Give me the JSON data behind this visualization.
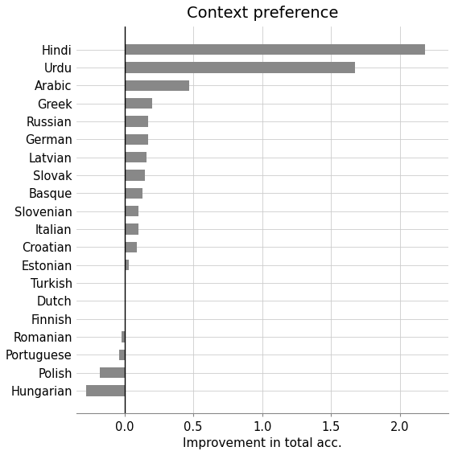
{
  "title": "Context preference",
  "xlabel": "Improvement in total acc.",
  "languages": [
    "Hindi",
    "Urdu",
    "Arabic",
    "Greek",
    "Russian",
    "German",
    "Latvian",
    "Slovak",
    "Basque",
    "Slovenian",
    "Italian",
    "Croatian",
    "Estonian",
    "Turkish",
    "Dutch",
    "Finnish",
    "Romanian",
    "Portuguese",
    "Polish",
    "Hungarian"
  ],
  "values": [
    2.18,
    1.67,
    0.47,
    0.2,
    0.17,
    0.17,
    0.16,
    0.15,
    0.13,
    0.1,
    0.1,
    0.09,
    0.03,
    0.01,
    0.005,
    0.0,
    -0.02,
    -0.04,
    -0.18,
    -0.28
  ],
  "bar_color": "#888888",
  "figsize": [
    5.64,
    5.66
  ],
  "dpi": 100,
  "xlim": [
    -0.35,
    2.35
  ],
  "title_fontsize": 14,
  "label_fontsize": 11,
  "tick_fontsize": 10.5
}
